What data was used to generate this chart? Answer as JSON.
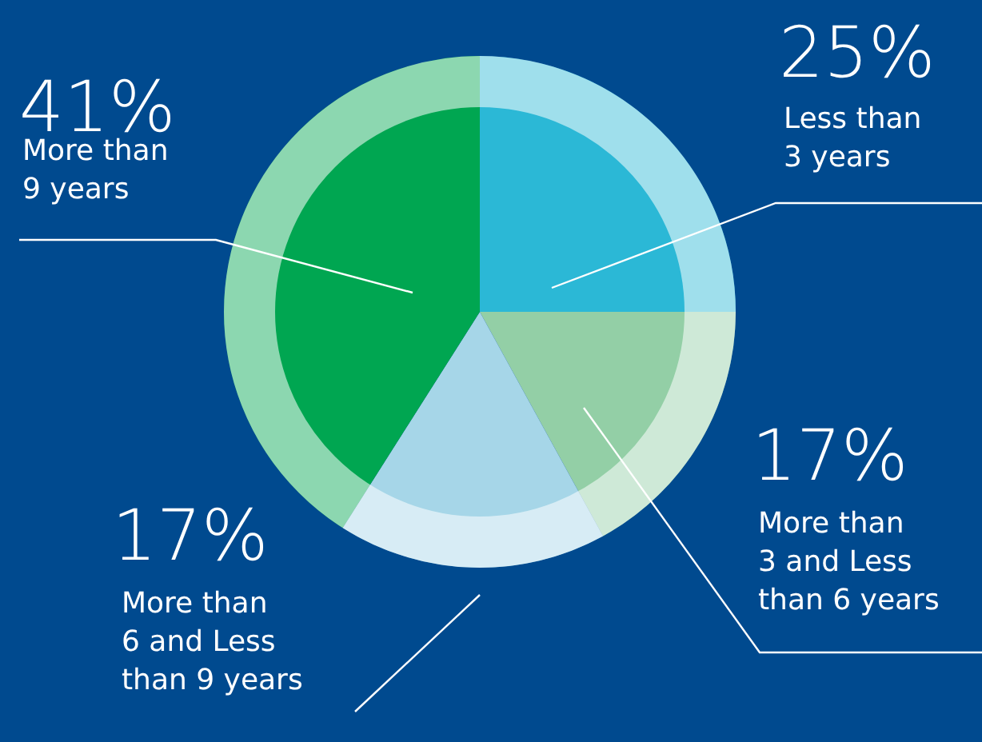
{
  "chart_data": {
    "type": "pie",
    "categories": [
      "Less than 3 years",
      "More than 3 and Less than 6 years",
      "More than 6 and Less than 9 years",
      "More than 9 years"
    ],
    "values": [
      25,
      17,
      17,
      41
    ],
    "colors": [
      "#2bb8d6",
      "#93cfa6",
      "#a6d6e8",
      "#00a651"
    ],
    "value_labels": [
      "25%",
      "17%",
      "17%",
      "41%"
    ]
  }
}
